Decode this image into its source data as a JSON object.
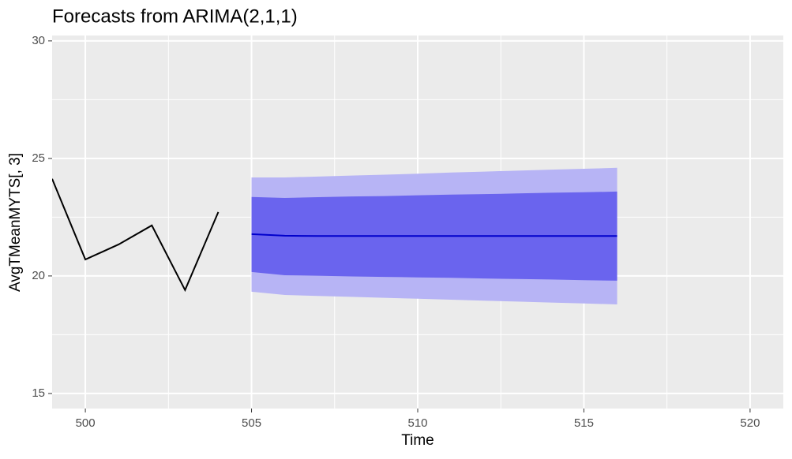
{
  "chart_data": {
    "type": "line",
    "title": "Forecasts from ARIMA(2,1,1)",
    "x_label": "Time",
    "y_label": "AvgTMeanMYTS[, 3]",
    "x": [
      499,
      500,
      501,
      502,
      503,
      504,
      505,
      506,
      507,
      508,
      509,
      510,
      511,
      512,
      513,
      514,
      515,
      516
    ],
    "series": [
      {
        "color": "#000000",
        "values": [
          24.13,
          20.7,
          21.34,
          22.15,
          19.4,
          22.72,
          null,
          null,
          null,
          null,
          null,
          null,
          null,
          null,
          null,
          null,
          null,
          null
        ]
      },
      {
        "color": "#0000cc",
        "values": [
          null,
          null,
          null,
          null,
          null,
          null,
          21.78,
          21.71,
          21.7,
          21.7,
          21.7,
          21.7,
          21.7,
          21.7,
          21.7,
          21.7,
          21.7,
          21.7
        ]
      }
    ],
    "intervals": [
      {
        "color": "#b7b4f5",
        "lower": [
          null,
          null,
          null,
          null,
          null,
          null,
          19.33,
          19.19,
          19.15,
          19.11,
          19.07,
          19.03,
          18.99,
          18.95,
          18.91,
          18.87,
          18.83,
          18.79
        ],
        "upper": [
          null,
          null,
          null,
          null,
          null,
          null,
          24.19,
          24.19,
          24.23,
          24.27,
          24.31,
          24.35,
          24.4,
          24.44,
          24.48,
          24.52,
          24.56,
          24.6
        ]
      },
      {
        "color": "#6a64ee",
        "lower": [
          null,
          null,
          null,
          null,
          null,
          null,
          20.17,
          20.03,
          20.01,
          19.98,
          19.96,
          19.94,
          19.92,
          19.89,
          19.87,
          19.85,
          19.82,
          19.8
        ],
        "upper": [
          null,
          null,
          null,
          null,
          null,
          null,
          23.36,
          23.32,
          23.35,
          23.38,
          23.4,
          23.43,
          23.46,
          23.48,
          23.51,
          23.54,
          23.56,
          23.59
        ]
      }
    ],
    "xlim": [
      499,
      521
    ],
    "ylim": [
      14.36,
      30.23
    ],
    "xticks": [
      500,
      505,
      510,
      515,
      520
    ],
    "yticks": [
      15,
      20,
      25,
      30
    ],
    "grid": true,
    "panel_color": "#ebebeb"
  }
}
